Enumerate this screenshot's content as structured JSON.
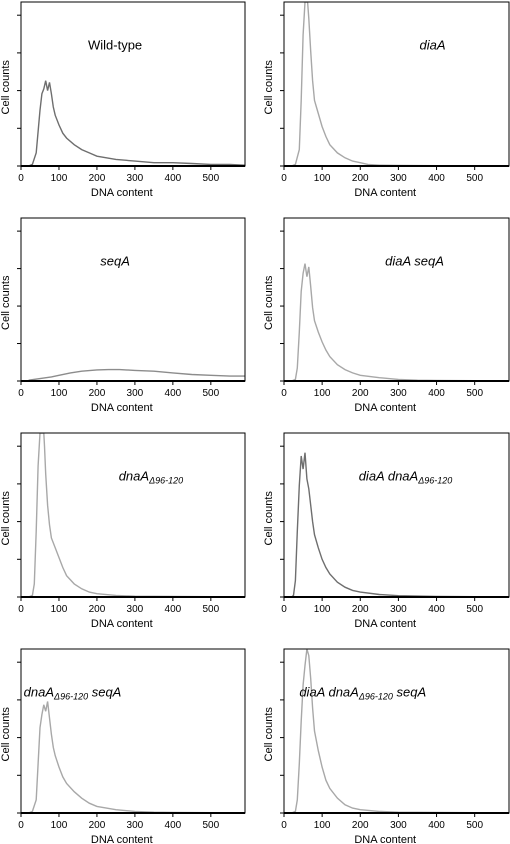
{
  "figure": {
    "panel_count": 8,
    "layout": "4 rows x 2 columns"
  },
  "chart_data": [
    {
      "type": "area",
      "title": "Wild-type",
      "title_italic": false,
      "xlabel": "DNA content",
      "ylabel": "Cell counts",
      "xlim": [
        0,
        590
      ],
      "xticks": [
        0,
        100,
        200,
        300,
        400,
        500
      ],
      "ylim": [
        0,
        100
      ],
      "line_color": "#6e6e6e",
      "x": [
        20,
        30,
        40,
        50,
        55,
        60,
        65,
        70,
        75,
        80,
        85,
        90,
        100,
        110,
        120,
        140,
        160,
        180,
        200,
        250,
        300,
        350,
        400,
        450,
        500,
        550,
        590
      ],
      "values": [
        0,
        1,
        8,
        34,
        44,
        47,
        52,
        46,
        51,
        44,
        36,
        31,
        25,
        20,
        17,
        13,
        10,
        8,
        6,
        4,
        3,
        2,
        2,
        1.5,
        1,
        1,
        0.5
      ]
    },
    {
      "type": "area",
      "title": "diaA",
      "title_italic": true,
      "xlabel": "DNA content",
      "ylabel": "Cell counts",
      "xlim": [
        0,
        590
      ],
      "xticks": [
        0,
        100,
        200,
        300,
        400,
        500
      ],
      "ylim": [
        0,
        100
      ],
      "line_color": "#a8a8a8",
      "x": [
        20,
        30,
        40,
        45,
        50,
        55,
        60,
        62,
        65,
        70,
        75,
        80,
        85,
        90,
        100,
        110,
        120,
        140,
        160,
        180,
        200,
        220,
        250,
        300,
        400,
        500,
        590
      ],
      "values": [
        0,
        1,
        10,
        40,
        80,
        100,
        100,
        100,
        90,
        70,
        52,
        40,
        36,
        32,
        24,
        18,
        13,
        8,
        5,
        3,
        2,
        1,
        0.5,
        0.3,
        0.2,
        0.1,
        0.1
      ]
    },
    {
      "type": "area",
      "title": "seqA",
      "title_italic": true,
      "xlabel": "DNA content",
      "ylabel": "Cell counts",
      "xlim": [
        0,
        590
      ],
      "xticks": [
        0,
        100,
        200,
        300,
        400,
        500
      ],
      "ylim": [
        0,
        100
      ],
      "line_color": "#8c8c8c",
      "x": [
        20,
        50,
        80,
        100,
        130,
        160,
        200,
        230,
        260,
        300,
        350,
        400,
        450,
        500,
        550,
        590
      ],
      "values": [
        0.5,
        1.5,
        2.5,
        3.5,
        5,
        6,
        6.8,
        7,
        7,
        6.5,
        6,
        5,
        4,
        3.5,
        3,
        3
      ]
    },
    {
      "type": "area",
      "title": "diaA seqA",
      "title_italic": true,
      "xlabel": "DNA content",
      "ylabel": "Cell counts",
      "xlim": [
        0,
        590
      ],
      "xticks": [
        0,
        100,
        200,
        300,
        400,
        500
      ],
      "ylim": [
        0,
        100
      ],
      "line_color": "#a8a8a8",
      "x": [
        20,
        30,
        35,
        40,
        45,
        50,
        55,
        60,
        65,
        70,
        75,
        80,
        90,
        100,
        110,
        120,
        140,
        160,
        180,
        200,
        250,
        300,
        350,
        400,
        500,
        590
      ],
      "values": [
        0,
        1,
        8,
        30,
        55,
        66,
        72,
        64,
        70,
        58,
        45,
        37,
        30,
        24,
        19,
        15,
        10,
        7,
        5,
        3.5,
        2,
        1,
        0.5,
        0.3,
        0.2,
        0.1
      ]
    },
    {
      "type": "area",
      "title": "dnaA",
      "title_subscript": "Δ96-120",
      "title_suffix": "",
      "title_italic": true,
      "xlabel": "DNA content",
      "ylabel": "Cell counts",
      "xlim": [
        0,
        590
      ],
      "xticks": [
        0,
        100,
        200,
        300,
        400,
        500
      ],
      "ylim": [
        0,
        100
      ],
      "line_color": "#a8a8a8",
      "x": [
        20,
        30,
        35,
        40,
        45,
        50,
        55,
        60,
        62,
        65,
        70,
        75,
        80,
        90,
        100,
        110,
        120,
        140,
        160,
        180,
        200,
        250,
        300,
        400,
        500,
        590
      ],
      "values": [
        0,
        1,
        8,
        40,
        80,
        100,
        100,
        100,
        92,
        75,
        56,
        44,
        36,
        30,
        24,
        18,
        13,
        8,
        5,
        3,
        2,
        1,
        0.5,
        0.3,
        0.2,
        0.1
      ]
    },
    {
      "type": "area",
      "title": "diaA dnaA",
      "title_subscript": "Δ96-120",
      "title_suffix": "",
      "title_italic": true,
      "xlabel": "DNA content",
      "ylabel": "Cell counts",
      "xlim": [
        0,
        590
      ],
      "xticks": [
        0,
        100,
        200,
        300,
        400,
        500
      ],
      "ylim": [
        0,
        100
      ],
      "line_color": "#6e6e6e",
      "x": [
        20,
        25,
        30,
        35,
        40,
        45,
        50,
        55,
        60,
        65,
        70,
        75,
        80,
        90,
        100,
        110,
        120,
        140,
        160,
        180,
        200,
        250,
        300,
        400,
        500,
        590
      ],
      "values": [
        0,
        1,
        10,
        40,
        68,
        86,
        78,
        88,
        72,
        66,
        56,
        46,
        38,
        30,
        23,
        18,
        14,
        9,
        6,
        4,
        3,
        1.5,
        0.8,
        0.3,
        0.2,
        0.1
      ]
    },
    {
      "type": "area",
      "title": "dnaA",
      "title_subscript": "Δ96-120",
      "title_suffix": " seqA",
      "title_italic": true,
      "xlabel": "DNA content",
      "ylabel": "Cell counts",
      "xlim": [
        0,
        590
      ],
      "xticks": [
        0,
        100,
        200,
        300,
        400,
        500
      ],
      "ylim": [
        0,
        100
      ],
      "line_color": "#a8a8a8",
      "x": [
        20,
        30,
        40,
        45,
        50,
        55,
        60,
        65,
        70,
        75,
        80,
        85,
        90,
        100,
        110,
        120,
        140,
        160,
        180,
        200,
        250,
        300,
        350,
        400,
        500,
        590
      ],
      "values": [
        0,
        1,
        8,
        30,
        52,
        60,
        66,
        62,
        68,
        58,
        48,
        40,
        35,
        28,
        22,
        18,
        13,
        9,
        6,
        4,
        2,
        1,
        0.5,
        0.3,
        0.2,
        0.1
      ]
    },
    {
      "type": "area",
      "title": "diaA dnaA",
      "title_subscript": "Δ96-120",
      "title_suffix": " seqA",
      "title_italic": true,
      "xlabel": "DNA content",
      "ylabel": "Cell counts",
      "xlim": [
        0,
        590
      ],
      "xticks": [
        0,
        100,
        200,
        300,
        400,
        500
      ],
      "ylim": [
        0,
        100
      ],
      "line_color": "#a8a8a8",
      "x": [
        20,
        30,
        35,
        40,
        45,
        50,
        55,
        60,
        65,
        70,
        75,
        80,
        90,
        100,
        110,
        120,
        140,
        160,
        180,
        200,
        250,
        300,
        400,
        500,
        590
      ],
      "values": [
        0,
        1,
        8,
        30,
        56,
        78,
        90,
        100,
        96,
        82,
        64,
        50,
        38,
        28,
        20,
        15,
        9,
        5,
        3,
        2,
        1,
        0.5,
        0.3,
        0.2,
        0.1
      ]
    }
  ]
}
